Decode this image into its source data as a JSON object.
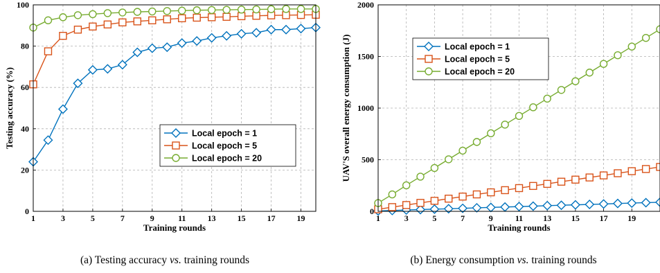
{
  "chart_data": [
    {
      "type": "line",
      "xlabel": "Training rounds",
      "ylabel": "Testing accuracy (%)",
      "xlim": [
        1,
        20
      ],
      "ylim": [
        0,
        100
      ],
      "xticks": [
        1,
        3,
        5,
        7,
        9,
        11,
        13,
        15,
        17,
        19
      ],
      "yticks": [
        0,
        20,
        40,
        60,
        80,
        100
      ],
      "grid": true,
      "legend_position": "center-right",
      "x": [
        1,
        2,
        3,
        4,
        5,
        6,
        7,
        8,
        9,
        10,
        11,
        12,
        13,
        14,
        15,
        16,
        17,
        18,
        19,
        20
      ],
      "series": [
        {
          "name": "Local epoch = 1",
          "color": "#0072BD",
          "marker": "diamond",
          "values": [
            24,
            34.5,
            49.5,
            62,
            68.5,
            69,
            71,
            77,
            79,
            79.5,
            81.5,
            82.5,
            84,
            85,
            86,
            86.5,
            88,
            88,
            88.5,
            89
          ]
        },
        {
          "name": "Local epoch = 5",
          "color": "#D95319",
          "marker": "square",
          "values": [
            61.5,
            77.5,
            85,
            88,
            89.5,
            90.5,
            91.5,
            92,
            92.5,
            93,
            93.5,
            93.8,
            94,
            94.2,
            94.5,
            94.7,
            94.9,
            95,
            95.1,
            95.2
          ]
        },
        {
          "name": "Local epoch = 20",
          "color": "#77AC30",
          "marker": "circle",
          "values": [
            89,
            92.5,
            94,
            95,
            95.5,
            96,
            96.3,
            96.6,
            96.8,
            97,
            97.2,
            97.4,
            97.5,
            97.6,
            97.7,
            97.8,
            97.9,
            98,
            98,
            98
          ]
        }
      ]
    },
    {
      "type": "line",
      "xlabel": "Training rounds",
      "ylabel": "UAV'S overall energy consumption (J)",
      "xlim": [
        1,
        21
      ],
      "ylim": [
        0,
        2000
      ],
      "xticks": [
        1,
        3,
        5,
        7,
        9,
        11,
        13,
        15,
        17,
        19
      ],
      "yticks": [
        0,
        500,
        1000,
        1500,
        2000
      ],
      "grid": true,
      "legend_position": "top-left",
      "x": [
        1,
        2,
        3,
        4,
        5,
        6,
        7,
        8,
        9,
        10,
        11,
        12,
        13,
        14,
        15,
        16,
        17,
        18,
        19,
        20,
        21
      ],
      "series": [
        {
          "name": "Local epoch = 1",
          "color": "#0072BD",
          "marker": "diamond",
          "values": [
            4,
            8,
            13,
            17,
            21,
            25,
            29,
            34,
            38,
            42,
            46,
            50,
            55,
            59,
            63,
            67,
            71,
            76,
            80,
            84,
            88
          ]
        },
        {
          "name": "Local epoch = 5",
          "color": "#D95319",
          "marker": "square",
          "values": [
            20,
            41,
            61,
            82,
            102,
            123,
            143,
            164,
            184,
            205,
            225,
            246,
            266,
            287,
            307,
            328,
            348,
            369,
            389,
            410,
            430
          ]
        },
        {
          "name": "Local epoch = 20",
          "color": "#77AC30",
          "marker": "circle",
          "values": [
            80,
            164,
            252,
            336,
            420,
            504,
            588,
            672,
            756,
            840,
            924,
            1008,
            1092,
            1176,
            1260,
            1344,
            1428,
            1512,
            1596,
            1680,
            1764
          ]
        }
      ]
    }
  ],
  "captions": {
    "a": {
      "pre": "(a) Testing accuracy ",
      "it": "vs.",
      "post": " training rounds"
    },
    "b": {
      "pre": "(b) Energy consumption ",
      "it": "vs.",
      "post": " training rounds"
    }
  }
}
